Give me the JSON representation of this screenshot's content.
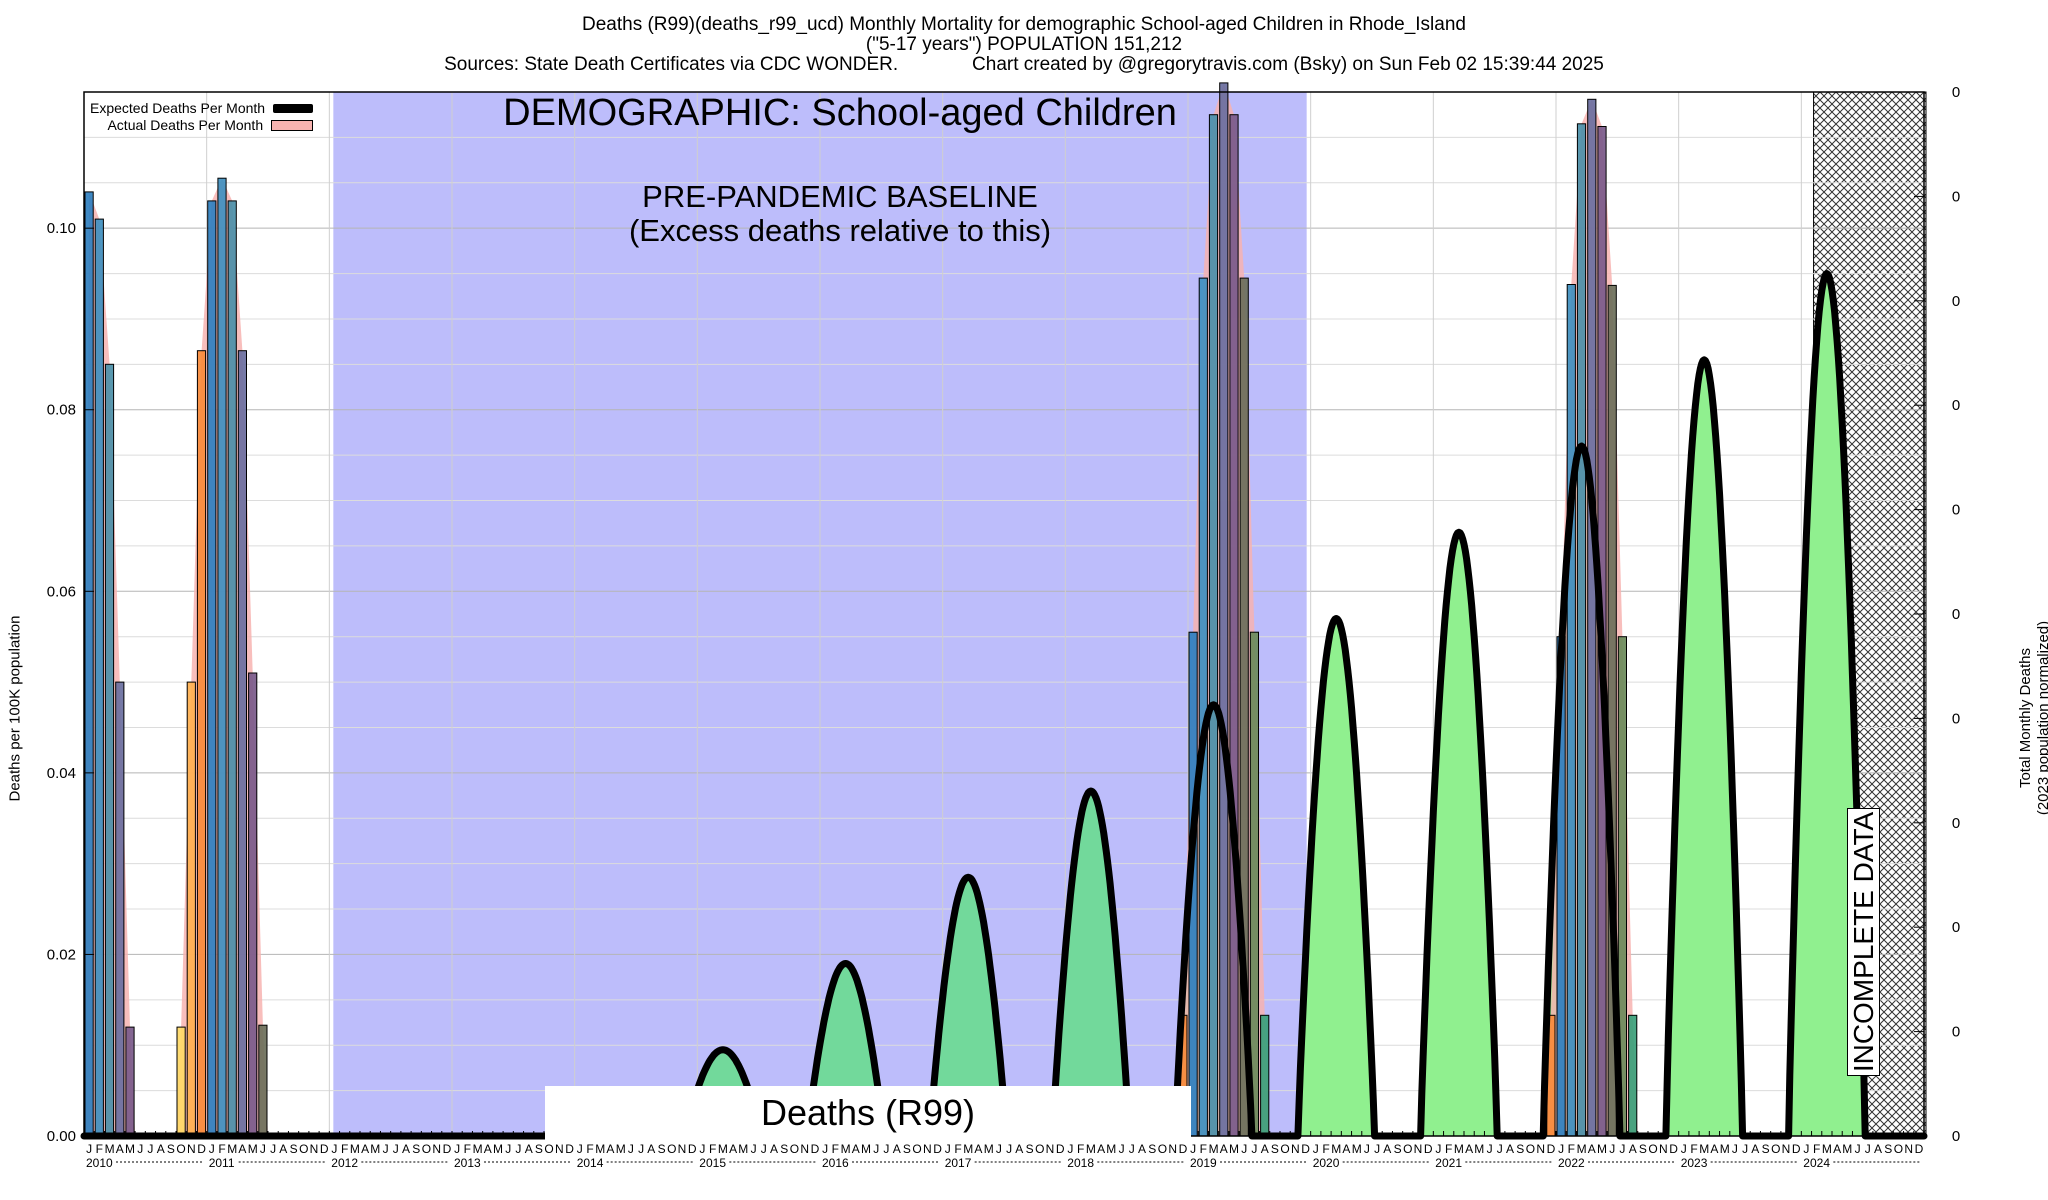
{
  "header": {
    "line1": "Deaths (R99)(deaths_r99_ucd) Monthly Mortality for demographic School-aged Children in Rhode_Island",
    "line2": "(\"5-17 years\") POPULATION 151,212",
    "line3": "Sources: State Death Certificates via CDC WONDER.              Chart created by @gregorytravis.com (Bsky) on Sun Feb 02 15:39:44 2025"
  },
  "annotations": {
    "demographic_label": "DEMOGRAPHIC: School-aged Children",
    "baseline_label_line1": "PRE-PANDEMIC BASELINE",
    "baseline_label_line2": "(Excess deaths relative to this)",
    "deaths_box": "Deaths (R99)",
    "incomplete_label": "INCOMPLETE DATA"
  },
  "legend": {
    "expected": "Expected Deaths Per Month",
    "actual": "Actual Deaths Per Month"
  },
  "colors": {
    "baseline_region": "#bdbdfb",
    "excess_fill": "#90f08f",
    "baseline_overlap_fill": "#72d99b",
    "actual_envelope": "#f7b3b0",
    "expected_line": "#000000",
    "gridline": "#c8c8c8"
  },
  "chart_data": {
    "type": "bar",
    "title": "",
    "xlabel": "",
    "ylabel": "Deaths per 100K population",
    "ylabel_right_line1": "Total Monthly Deaths",
    "ylabel_right_line2": "(2023 population normalized)",
    "ylim": [
      0,
      0.115
    ],
    "y_ticks": [
      "0.00",
      "0.02",
      "0.04",
      "0.06",
      "0.08",
      "0.10"
    ],
    "y_right_ticks": [
      "0",
      "0",
      "0",
      "0",
      "0",
      "0",
      "0",
      "0",
      "0",
      "0",
      "0"
    ],
    "x_range": [
      "2010-01",
      "2024-12"
    ],
    "month_letters": [
      "J",
      "F",
      "M",
      "A",
      "M",
      "J",
      "J",
      "A",
      "S",
      "O",
      "N",
      "D"
    ],
    "years": [
      "2010",
      "2011",
      "2012",
      "2013",
      "2014",
      "2015",
      "2016",
      "2017",
      "2018",
      "2019",
      "2020",
      "2021",
      "2022",
      "2023",
      "2024"
    ],
    "grid": true,
    "legend_position": "top-left",
    "regions": {
      "pre_pandemic_baseline": [
        "2012-01",
        "2019-12"
      ],
      "incomplete_data": [
        "2024-02",
        "2024-12"
      ]
    },
    "actual_bars": [
      {
        "month": "2010-01",
        "value": 0.104
      },
      {
        "month": "2010-02",
        "value": 0.101
      },
      {
        "month": "2010-03",
        "value": 0.085
      },
      {
        "month": "2010-04",
        "value": 0.05
      },
      {
        "month": "2010-05",
        "value": 0.012
      },
      {
        "month": "2010-10",
        "value": 0.012
      },
      {
        "month": "2010-11",
        "value": 0.05
      },
      {
        "month": "2010-12",
        "value": 0.0865
      },
      {
        "month": "2011-01",
        "value": 0.103
      },
      {
        "month": "2011-02",
        "value": 0.1055
      },
      {
        "month": "2011-03",
        "value": 0.103
      },
      {
        "month": "2011-04",
        "value": 0.0865
      },
      {
        "month": "2011-05",
        "value": 0.051
      },
      {
        "month": "2011-06",
        "value": 0.0122
      },
      {
        "month": "2018-12",
        "value": 0.0133
      },
      {
        "month": "2019-01",
        "value": 0.0555
      },
      {
        "month": "2019-02",
        "value": 0.0945
      },
      {
        "month": "2019-03",
        "value": 0.1125
      },
      {
        "month": "2019-04",
        "value": 0.116
      },
      {
        "month": "2019-05",
        "value": 0.1125
      },
      {
        "month": "2019-06",
        "value": 0.0945
      },
      {
        "month": "2019-07",
        "value": 0.0555
      },
      {
        "month": "2019-08",
        "value": 0.0133
      },
      {
        "month": "2021-12",
        "value": 0.0133
      },
      {
        "month": "2022-01",
        "value": 0.055
      },
      {
        "month": "2022-02",
        "value": 0.0938
      },
      {
        "month": "2022-03",
        "value": 0.1115
      },
      {
        "month": "2022-04",
        "value": 0.1142
      },
      {
        "month": "2022-05",
        "value": 0.1112
      },
      {
        "month": "2022-06",
        "value": 0.0937
      },
      {
        "month": "2022-07",
        "value": 0.055
      },
      {
        "month": "2022-08",
        "value": 0.0133
      }
    ],
    "expected_peaks": [
      {
        "year": "2015",
        "value": 0.0095
      },
      {
        "year": "2016",
        "value": 0.019
      },
      {
        "year": "2017",
        "value": 0.0285
      },
      {
        "year": "2018",
        "value": 0.038
      },
      {
        "year": "2019",
        "value": 0.0475
      },
      {
        "year": "2020",
        "value": 0.057
      },
      {
        "year": "2021",
        "value": 0.0665
      },
      {
        "year": "2022",
        "value": 0.076
      },
      {
        "year": "2023",
        "value": 0.0855
      },
      {
        "year": "2024",
        "value": 0.095
      }
    ]
  }
}
